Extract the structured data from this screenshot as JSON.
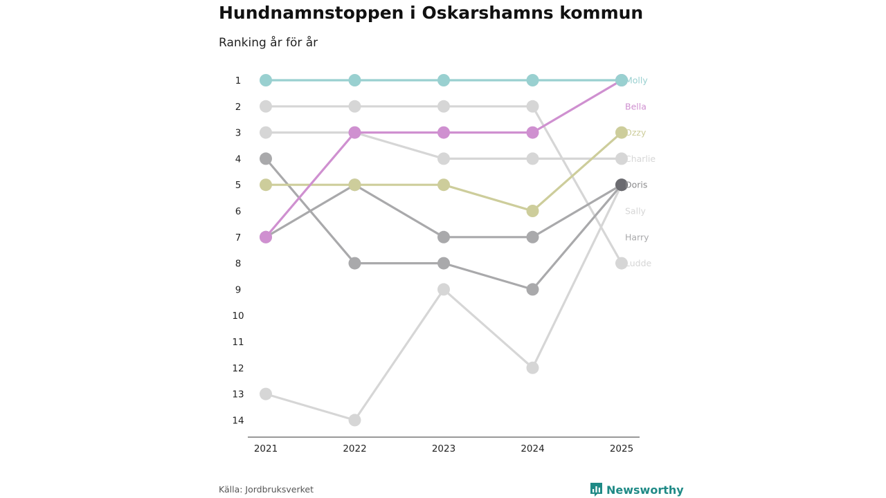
{
  "title": "Hundnamnstoppen i Oskarshamns kommun",
  "subtitle": "Ranking år för år",
  "source": "Källa: Jordbruksverket",
  "brand": "Newsworthy",
  "brand_icon": "bar-chart-icon",
  "chart_data": {
    "type": "line",
    "chart_kind": "bump",
    "x": [
      "2021",
      "2022",
      "2023",
      "2024",
      "2025"
    ],
    "y_ticks": [
      1,
      2,
      3,
      4,
      5,
      6,
      7,
      8,
      9,
      10,
      11,
      12,
      13,
      14
    ],
    "ylim": [
      1,
      14
    ],
    "y_inverted": true,
    "grid": false,
    "series": [
      {
        "name": "Sally",
        "color": "#d6d6d6",
        "values": [
          13,
          14,
          9,
          12,
          5
        ]
      },
      {
        "name": "Ludde",
        "color": "#d6d6d6",
        "values": [
          2,
          2,
          2,
          2,
          8
        ]
      },
      {
        "name": "Charlie",
        "color": "#d6d6d6",
        "values": [
          3,
          3,
          4,
          4,
          4
        ]
      },
      {
        "name": "Harry",
        "color": "#a9a9ab",
        "values": [
          4,
          8,
          8,
          9,
          5
        ]
      },
      {
        "name": "Doris",
        "color": "#a9a9ab",
        "values": [
          7,
          5,
          7,
          7,
          5
        ]
      },
      {
        "name": "Ozzy",
        "color": "#cdcd9b",
        "values": [
          5,
          5,
          5,
          6,
          3
        ]
      },
      {
        "name": "Bella",
        "color": "#cf90d0",
        "values": [
          7,
          3,
          3,
          3,
          1
        ]
      },
      {
        "name": "Molly",
        "color": "#99d0d0",
        "values": [
          1,
          1,
          1,
          1,
          1
        ]
      }
    ],
    "end_labels": [
      {
        "name": "Molly",
        "rank": 1,
        "color": "#99d0d0"
      },
      {
        "name": "Bella",
        "rank": 2,
        "color": "#cf90d0"
      },
      {
        "name": "Ozzy",
        "rank": 3,
        "color": "#cdcd9b"
      },
      {
        "name": "Charlie",
        "rank": 4,
        "color": "#d6d6d6"
      },
      {
        "name": "Doris",
        "rank": 5,
        "color": "#8a8a8c"
      },
      {
        "name": "Sally",
        "rank": 6,
        "color": "#d6d6d6"
      },
      {
        "name": "Harry",
        "rank": 7,
        "color": "#a9a9ab"
      },
      {
        "name": "Ludde",
        "rank": 8,
        "color": "#d6d6d6"
      }
    ],
    "highlight_point": {
      "name": "Doris",
      "year": "2025",
      "rank": 5,
      "color": "#6b6b70"
    }
  }
}
